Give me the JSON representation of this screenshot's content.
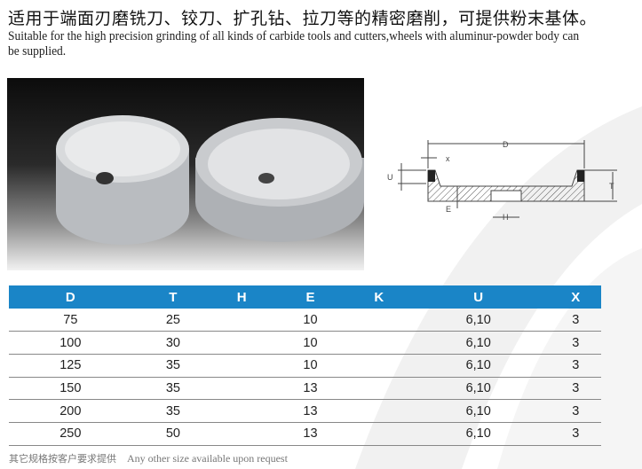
{
  "title_cn": "适用于端面刃磨铣刀、铰刀、扩孔钻、拉刀等的精密磨削，可提供粉末基体。",
  "title_en": "Suitable for the high precision grinding of all kinds of carbide tools and cutters,wheels with aluminur-powder body can be supplied.",
  "diagram": {
    "labels": {
      "D": "D",
      "X": "x",
      "U": "U",
      "T": "T",
      "E": "E",
      "H": "H"
    }
  },
  "table": {
    "header_color": "#1a85c7",
    "columns": [
      "D",
      "T",
      "H",
      "E",
      "K",
      "U",
      "X"
    ],
    "rows": [
      [
        "75",
        "25",
        "",
        "10",
        "",
        "6,10",
        "3"
      ],
      [
        "100",
        "30",
        "",
        "10",
        "",
        "6,10",
        "3"
      ],
      [
        "125",
        "35",
        "",
        "10",
        "",
        "6,10",
        "3"
      ],
      [
        "150",
        "35",
        "",
        "13",
        "",
        "6,10",
        "3"
      ],
      [
        "200",
        "35",
        "",
        "13",
        "",
        "6,10",
        "3"
      ],
      [
        "250",
        "50",
        "",
        "13",
        "",
        "6,10",
        "3"
      ]
    ]
  },
  "note": {
    "cn": "其它规格按客户要求提供",
    "en": "Any other size available upon request"
  }
}
